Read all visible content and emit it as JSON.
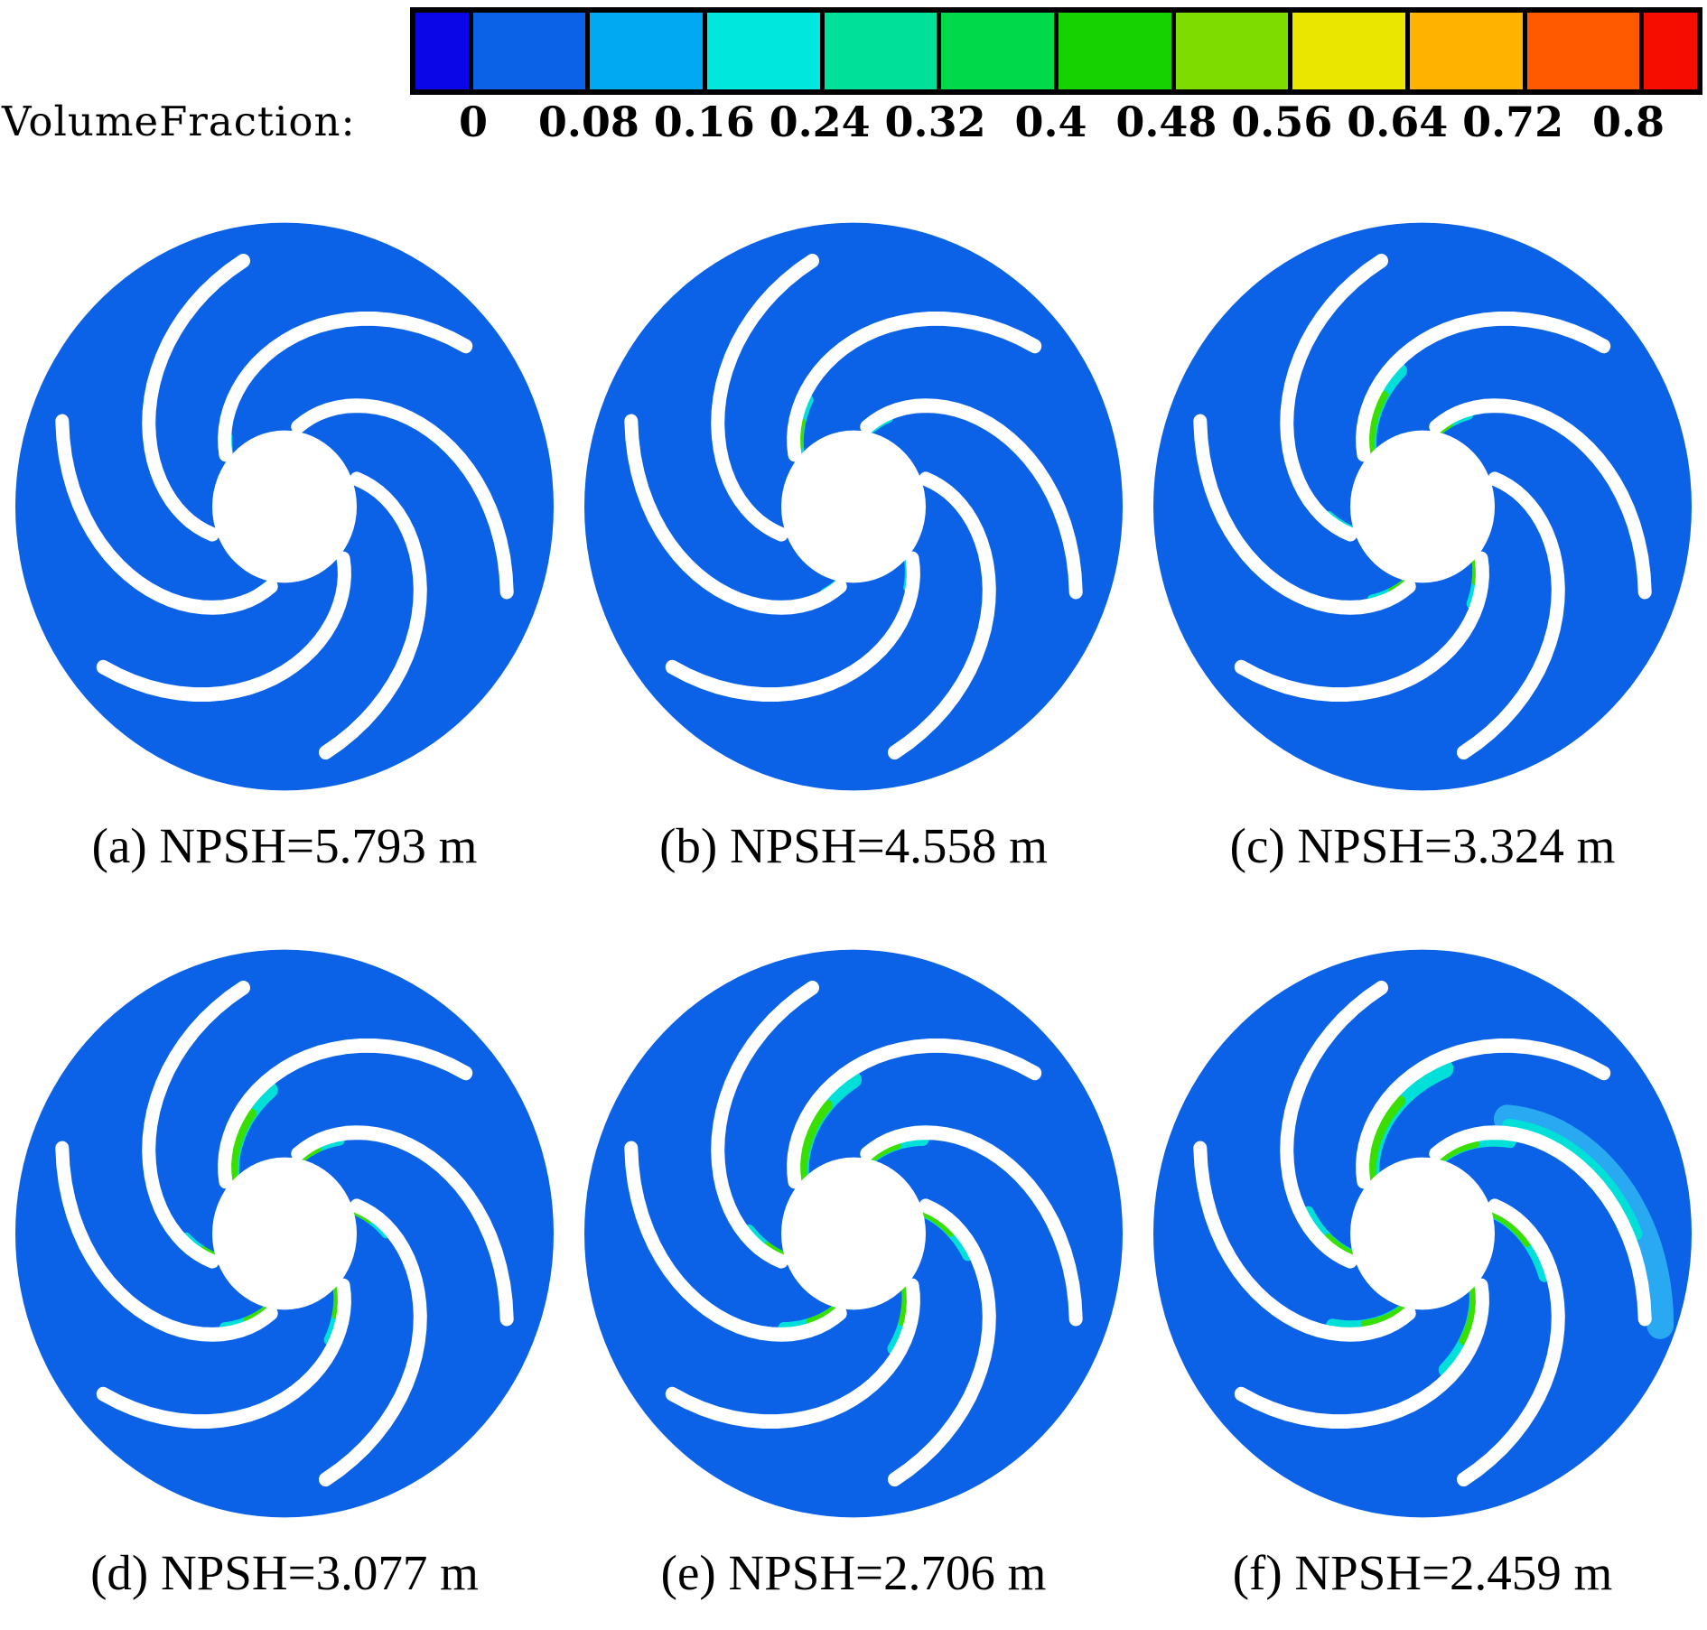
{
  "figure": {
    "kind": "cfd-cavitation-contour-figure",
    "background": "#FFFFFF",
    "rows": 2,
    "cols": 3
  },
  "chart_data": {
    "type": "heatmap",
    "title": "",
    "legend": {
      "title": "VolumeFraction:",
      "orientation": "horizontal",
      "ticks": [
        "0",
        "0.08",
        "0.16",
        "0.24",
        "0.32",
        "0.4",
        "0.48",
        "0.56",
        "0.64",
        "0.72",
        "0.8"
      ],
      "tick_values": [
        0,
        0.08,
        0.16,
        0.24,
        0.32,
        0.4,
        0.48,
        0.56,
        0.64,
        0.72,
        0.8
      ],
      "band_colors": [
        "#0A06E8",
        "#0B62E6",
        "#00A9F2",
        "#00E7DE",
        "#00E099",
        "#00D94A",
        "#16D200",
        "#7EDC00",
        "#EAE600",
        "#FFB300",
        "#FF5A00",
        "#F70D00"
      ]
    },
    "impeller": {
      "n_blades": 6,
      "disk_radius": 298,
      "hub_radius": 80,
      "blade_r_in": 85,
      "blade_r_out": 262,
      "blade_sweep_deg": 100,
      "blade_start_angle_deg": -140,
      "blade_width": 15,
      "y_stretch": 1.055,
      "body_color": "#0B62E6",
      "blade_color": "#FFFFFF",
      "hub_color": "#FFFFFF",
      "cavitation_colors": {
        "cyan": "#00DFD8",
        "green": "#38DF00",
        "lightblue": "#29A9F2"
      }
    },
    "panels": [
      {
        "id": "a",
        "caption": "(a) NPSH=5.793 m",
        "npsh_m": 5.793,
        "cavitation": [
          {
            "blade": 0,
            "side": "inner",
            "from": 0.03,
            "to": 0.1,
            "width": 8,
            "color": "cyan"
          },
          {
            "blade": 4,
            "side": "inner",
            "from": 0.02,
            "to": 0.08,
            "width": 7,
            "color": "cyan"
          }
        ]
      },
      {
        "id": "b",
        "caption": "(b) NPSH=4.558 m",
        "npsh_m": 4.558,
        "cavitation": [
          {
            "blade": 0,
            "side": "inner",
            "from": 0.03,
            "to": 0.26,
            "width": 11,
            "color": "cyan"
          },
          {
            "blade": 0,
            "side": "inner",
            "from": 0.07,
            "to": 0.18,
            "width": 5,
            "color": "green"
          },
          {
            "blade": 1,
            "side": "inner",
            "from": 0.0,
            "to": 0.13,
            "width": 9,
            "color": "cyan"
          },
          {
            "blade": 3,
            "side": "inner",
            "from": 0.02,
            "to": 0.15,
            "width": 9,
            "color": "cyan"
          },
          {
            "blade": 4,
            "side": "inner",
            "from": 0.0,
            "to": 0.1,
            "width": 8,
            "color": "cyan"
          }
        ]
      },
      {
        "id": "c",
        "caption": "(c) NPSH=3.324 m",
        "npsh_m": 3.324,
        "cavitation": [
          {
            "blade": 0,
            "side": "inner",
            "from": 0.02,
            "to": 0.4,
            "width": 16,
            "color": "cyan"
          },
          {
            "blade": 0,
            "side": "inner",
            "from": 0.05,
            "to": 0.3,
            "width": 9,
            "color": "green"
          },
          {
            "blade": 1,
            "side": "inner",
            "from": 0.0,
            "to": 0.18,
            "width": 10,
            "color": "cyan"
          },
          {
            "blade": 1,
            "side": "inner",
            "from": 0.03,
            "to": 0.1,
            "width": 5,
            "color": "green"
          },
          {
            "blade": 3,
            "side": "inner",
            "from": 0.01,
            "to": 0.22,
            "width": 11,
            "color": "cyan"
          },
          {
            "blade": 3,
            "side": "inner",
            "from": 0.04,
            "to": 0.14,
            "width": 6,
            "color": "green"
          },
          {
            "blade": 4,
            "side": "inner",
            "from": 0.0,
            "to": 0.2,
            "width": 10,
            "color": "cyan"
          },
          {
            "blade": 4,
            "side": "inner",
            "from": 0.03,
            "to": 0.12,
            "width": 5,
            "color": "green"
          },
          {
            "blade": 5,
            "side": "inner",
            "from": 0.0,
            "to": 0.15,
            "width": 9,
            "color": "cyan"
          }
        ]
      },
      {
        "id": "d",
        "caption": "(d) NPSH=3.077 m",
        "npsh_m": 3.077,
        "cavitation": [
          {
            "blade": 0,
            "side": "inner",
            "from": 0.02,
            "to": 0.44,
            "width": 17,
            "color": "cyan"
          },
          {
            "blade": 0,
            "side": "inner",
            "from": 0.05,
            "to": 0.34,
            "width": 10,
            "color": "green"
          },
          {
            "blade": 1,
            "side": "inner",
            "from": 0.0,
            "to": 0.22,
            "width": 11,
            "color": "cyan"
          },
          {
            "blade": 1,
            "side": "inner",
            "from": 0.03,
            "to": 0.13,
            "width": 6,
            "color": "green"
          },
          {
            "blade": 2,
            "side": "inner",
            "from": 0.0,
            "to": 0.2,
            "width": 10,
            "color": "cyan"
          },
          {
            "blade": 2,
            "side": "inner",
            "from": 0.03,
            "to": 0.12,
            "width": 5,
            "color": "green"
          },
          {
            "blade": 3,
            "side": "inner",
            "from": 0.01,
            "to": 0.26,
            "width": 12,
            "color": "cyan"
          },
          {
            "blade": 3,
            "side": "inner",
            "from": 0.05,
            "to": 0.17,
            "width": 7,
            "color": "green"
          },
          {
            "blade": 4,
            "side": "inner",
            "from": 0.0,
            "to": 0.24,
            "width": 11,
            "color": "cyan"
          },
          {
            "blade": 4,
            "side": "inner",
            "from": 0.04,
            "to": 0.15,
            "width": 6,
            "color": "green"
          },
          {
            "blade": 5,
            "side": "inner",
            "from": 0.0,
            "to": 0.18,
            "width": 10,
            "color": "cyan"
          },
          {
            "blade": 5,
            "side": "inner",
            "from": 0.04,
            "to": 0.1,
            "width": 5,
            "color": "green"
          }
        ]
      },
      {
        "id": "e",
        "caption": "(e) NPSH=2.706 m",
        "npsh_m": 2.706,
        "cavitation": [
          {
            "blade": 0,
            "side": "inner",
            "from": 0.02,
            "to": 0.5,
            "width": 18,
            "color": "cyan"
          },
          {
            "blade": 0,
            "side": "inner",
            "from": 0.05,
            "to": 0.38,
            "width": 11,
            "color": "green"
          },
          {
            "blade": 1,
            "side": "inner",
            "from": 0.0,
            "to": 0.28,
            "width": 13,
            "color": "cyan"
          },
          {
            "blade": 1,
            "side": "inner",
            "from": 0.03,
            "to": 0.18,
            "width": 7,
            "color": "green"
          },
          {
            "blade": 2,
            "side": "inner",
            "from": 0.0,
            "to": 0.3,
            "width": 13,
            "color": "cyan"
          },
          {
            "blade": 2,
            "side": "inner",
            "from": 0.04,
            "to": 0.2,
            "width": 7,
            "color": "green"
          },
          {
            "blade": 3,
            "side": "inner",
            "from": 0.0,
            "to": 0.3,
            "width": 13,
            "color": "cyan"
          },
          {
            "blade": 3,
            "side": "inner",
            "from": 0.05,
            "to": 0.2,
            "width": 8,
            "color": "green"
          },
          {
            "blade": 4,
            "side": "inner",
            "from": 0.0,
            "to": 0.28,
            "width": 12,
            "color": "cyan"
          },
          {
            "blade": 4,
            "side": "inner",
            "from": 0.04,
            "to": 0.18,
            "width": 7,
            "color": "green"
          },
          {
            "blade": 5,
            "side": "inner",
            "from": 0.0,
            "to": 0.22,
            "width": 11,
            "color": "cyan"
          },
          {
            "blade": 5,
            "side": "inner",
            "from": 0.04,
            "to": 0.13,
            "width": 6,
            "color": "green"
          }
        ]
      },
      {
        "id": "f",
        "caption": "(f) NPSH=2.459 m",
        "npsh_m": 2.459,
        "cavitation": [
          {
            "blade": 0,
            "side": "inner",
            "from": 0.02,
            "to": 0.58,
            "width": 20,
            "color": "cyan"
          },
          {
            "blade": 0,
            "side": "inner",
            "from": 0.06,
            "to": 0.4,
            "width": 11,
            "color": "green"
          },
          {
            "blade": 1,
            "side": "outer",
            "from": 0.28,
            "to": 1.0,
            "width": 30,
            "color": "lightblue"
          },
          {
            "blade": 1,
            "side": "outer",
            "from": 0.3,
            "to": 0.8,
            "width": 14,
            "color": "cyan"
          },
          {
            "blade": 1,
            "side": "inner",
            "from": 0.0,
            "to": 0.35,
            "width": 14,
            "color": "cyan"
          },
          {
            "blade": 1,
            "side": "inner",
            "from": 0.04,
            "to": 0.22,
            "width": 8,
            "color": "green"
          },
          {
            "blade": 2,
            "side": "inner",
            "from": 0.0,
            "to": 0.38,
            "width": 14,
            "color": "cyan"
          },
          {
            "blade": 2,
            "side": "inner",
            "from": 0.05,
            "to": 0.25,
            "width": 8,
            "color": "green"
          },
          {
            "blade": 3,
            "side": "inner",
            "from": 0.0,
            "to": 0.4,
            "width": 15,
            "color": "cyan"
          },
          {
            "blade": 3,
            "side": "inner",
            "from": 0.06,
            "to": 0.28,
            "width": 9,
            "color": "green"
          },
          {
            "blade": 4,
            "side": "inner",
            "from": 0.0,
            "to": 0.36,
            "width": 14,
            "color": "cyan"
          },
          {
            "blade": 4,
            "side": "inner",
            "from": 0.05,
            "to": 0.24,
            "width": 8,
            "color": "green"
          },
          {
            "blade": 5,
            "side": "inner",
            "from": 0.0,
            "to": 0.3,
            "width": 13,
            "color": "cyan"
          },
          {
            "blade": 5,
            "side": "inner",
            "from": 0.05,
            "to": 0.18,
            "width": 7,
            "color": "green"
          }
        ]
      }
    ]
  }
}
